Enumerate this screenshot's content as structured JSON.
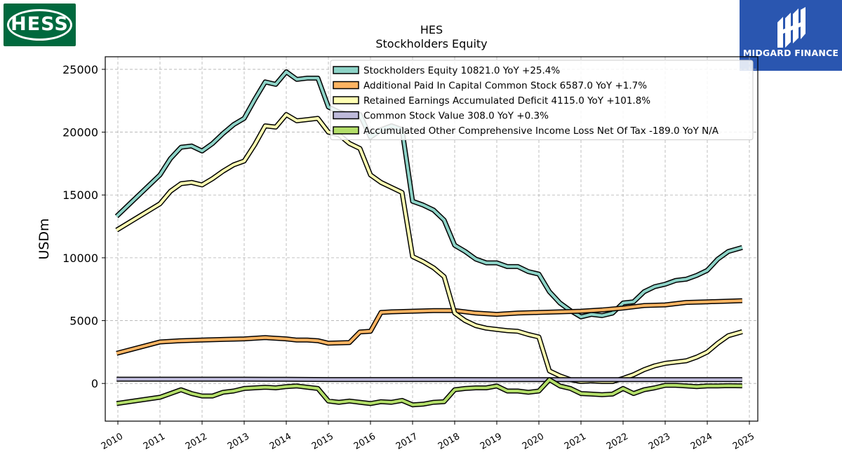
{
  "logo_left": {
    "text": "HESS",
    "bg": "#00693e"
  },
  "logo_right": {
    "text": "MIDGARD FINANCE",
    "bg": "#2a56b0"
  },
  "chart_data": {
    "type": "line",
    "title": "HES",
    "subtitle": "Stockholders  Equity",
    "xlabel": "",
    "ylabel": "USDm",
    "ylim": [
      -3000,
      26000
    ],
    "xlim": [
      2009.7,
      2025.2
    ],
    "yticks": [
      0,
      5000,
      10000,
      15000,
      20000,
      25000
    ],
    "xticks": [
      "2010",
      "2011",
      "2012",
      "2013",
      "2014",
      "2015",
      "2016",
      "2017",
      "2018",
      "2019",
      "2020",
      "2021",
      "2022",
      "2023",
      "2024",
      "2025"
    ],
    "grid": true,
    "legend_position": "top-right",
    "series": [
      {
        "name": "Stockholders Equity  10821.0 YoY +25.4%",
        "color": "#8dd3c7",
        "x": [
          2009.97,
          2011.0,
          2011.25,
          2011.5,
          2011.75,
          2012.0,
          2012.25,
          2012.5,
          2012.75,
          2013.0,
          2013.25,
          2013.5,
          2013.75,
          2014.0,
          2014.25,
          2014.5,
          2014.75,
          2015.0,
          2015.25,
          2015.5,
          2015.75,
          2016.0,
          2016.25,
          2016.5,
          2016.75,
          2017.0,
          2017.25,
          2017.5,
          2017.75,
          2018.0,
          2018.25,
          2018.5,
          2018.75,
          2019.0,
          2019.25,
          2019.5,
          2019.75,
          2020.0,
          2020.25,
          2020.5,
          2020.75,
          2021.0,
          2021.25,
          2021.5,
          2021.75,
          2022.0,
          2022.25,
          2022.5,
          2022.75,
          2023.0,
          2023.25,
          2023.5,
          2023.75,
          2024.0,
          2024.25,
          2024.5,
          2024.83
        ],
        "values": [
          13300,
          16600,
          17900,
          18800,
          18900,
          18500,
          19100,
          19900,
          20600,
          21100,
          22600,
          24000,
          23800,
          24800,
          24200,
          24300,
          24300,
          22000,
          21600,
          21400,
          21400,
          19600,
          20200,
          20500,
          20200,
          14500,
          14200,
          13800,
          13000,
          11000,
          10500,
          9900,
          9600,
          9600,
          9300,
          9300,
          8900,
          8700,
          7300,
          6400,
          5800,
          5300,
          5500,
          5400,
          5600,
          6400,
          6500,
          7300,
          7700,
          7900,
          8200,
          8300,
          8600,
          9000,
          9900,
          10500,
          10821
        ]
      },
      {
        "name": "Additional Paid In Capital Common Stock  6587.0 YoY +1.7%",
        "color": "#fdb462",
        "x": [
          2009.97,
          2011.0,
          2011.5,
          2012.0,
          2012.5,
          2013.0,
          2013.5,
          2014.0,
          2014.25,
          2014.5,
          2014.75,
          2015.0,
          2015.5,
          2015.75,
          2016.0,
          2016.25,
          2016.5,
          2017.0,
          2017.5,
          2018.0,
          2018.5,
          2019.0,
          2019.5,
          2020.0,
          2020.5,
          2021.0,
          2021.5,
          2022.0,
          2022.5,
          2023.0,
          2023.5,
          2024.0,
          2024.83
        ],
        "values": [
          2400,
          3300,
          3400,
          3450,
          3500,
          3550,
          3650,
          3550,
          3450,
          3450,
          3400,
          3200,
          3250,
          4100,
          4150,
          5650,
          5700,
          5750,
          5800,
          5800,
          5600,
          5500,
          5600,
          5650,
          5700,
          5750,
          5850,
          6000,
          6200,
          6250,
          6450,
          6500,
          6587
        ]
      },
      {
        "name": "Retained Earnings Accumulated Deficit  4115.0 YoY +101.8%",
        "color": "#ffffb3",
        "x": [
          2009.97,
          2011.0,
          2011.25,
          2011.5,
          2011.75,
          2012.0,
          2012.25,
          2012.5,
          2012.75,
          2013.0,
          2013.25,
          2013.5,
          2013.75,
          2014.0,
          2014.25,
          2014.5,
          2014.75,
          2015.0,
          2015.25,
          2015.5,
          2015.75,
          2016.0,
          2016.25,
          2016.5,
          2016.75,
          2017.0,
          2017.25,
          2017.5,
          2017.75,
          2018.0,
          2018.25,
          2018.5,
          2018.75,
          2019.0,
          2019.25,
          2019.5,
          2019.75,
          2020.0,
          2020.25,
          2020.5,
          2020.75,
          2021.0,
          2021.25,
          2021.5,
          2021.75,
          2022.0,
          2022.25,
          2022.5,
          2022.75,
          2023.0,
          2023.25,
          2023.5,
          2023.75,
          2024.0,
          2024.25,
          2024.5,
          2024.83
        ],
        "values": [
          12200,
          14300,
          15300,
          15900,
          16000,
          15800,
          16300,
          16900,
          17400,
          17700,
          19000,
          20500,
          20400,
          21400,
          20900,
          21000,
          21100,
          20000,
          19800,
          19100,
          18700,
          16600,
          16000,
          15600,
          15200,
          10100,
          9700,
          9200,
          8500,
          5600,
          5000,
          4600,
          4400,
          4300,
          4200,
          4150,
          3900,
          3700,
          1000,
          600,
          300,
          150,
          200,
          150,
          150,
          400,
          700,
          1100,
          1400,
          1600,
          1700,
          1800,
          2100,
          2500,
          3200,
          3800,
          4115
        ]
      },
      {
        "name": "Common Stock Value  308.0 YoY +0.3%",
        "color": "#bebada",
        "x": [
          2009.97,
          2011.0,
          2012.0,
          2013.0,
          2014.0,
          2015.0,
          2016.0,
          2017.0,
          2018.0,
          2019.0,
          2020.0,
          2021.0,
          2022.0,
          2023.0,
          2024.0,
          2024.83
        ],
        "values": [
          340,
          340,
          340,
          340,
          330,
          310,
          310,
          315,
          310,
          300,
          305,
          305,
          305,
          305,
          307,
          308
        ]
      },
      {
        "name": "Accumulated Other Comprehensive Income Loss Net Of Tax  -189.0 YoY N/A",
        "color": "#b3de69",
        "x": [
          2009.97,
          2011.0,
          2011.25,
          2011.5,
          2011.75,
          2012.0,
          2012.25,
          2012.5,
          2012.75,
          2013.0,
          2013.25,
          2013.5,
          2013.75,
          2014.0,
          2014.25,
          2014.5,
          2014.75,
          2015.0,
          2015.25,
          2015.5,
          2015.75,
          2016.0,
          2016.25,
          2016.5,
          2016.75,
          2017.0,
          2017.25,
          2017.5,
          2017.75,
          2018.0,
          2018.25,
          2018.5,
          2018.75,
          2019.0,
          2019.25,
          2019.5,
          2019.75,
          2020.0,
          2020.25,
          2020.5,
          2020.75,
          2021.0,
          2021.25,
          2021.5,
          2021.75,
          2022.0,
          2022.25,
          2022.5,
          2022.75,
          2023.0,
          2023.25,
          2023.5,
          2023.75,
          2024.0,
          2024.25,
          2024.5,
          2024.83
        ],
        "values": [
          -1600,
          -1100,
          -800,
          -500,
          -800,
          -1000,
          -1000,
          -700,
          -600,
          -400,
          -350,
          -300,
          -350,
          -250,
          -200,
          -300,
          -400,
          -1400,
          -1500,
          -1400,
          -1500,
          -1600,
          -1450,
          -1500,
          -1350,
          -1700,
          -1650,
          -1500,
          -1450,
          -500,
          -400,
          -350,
          -350,
          -200,
          -600,
          -600,
          -700,
          -600,
          300,
          -200,
          -400,
          -800,
          -850,
          -900,
          -850,
          -400,
          -800,
          -500,
          -350,
          -150,
          -150,
          -200,
          -250,
          -200,
          -200,
          -180,
          -189
        ]
      }
    ]
  }
}
